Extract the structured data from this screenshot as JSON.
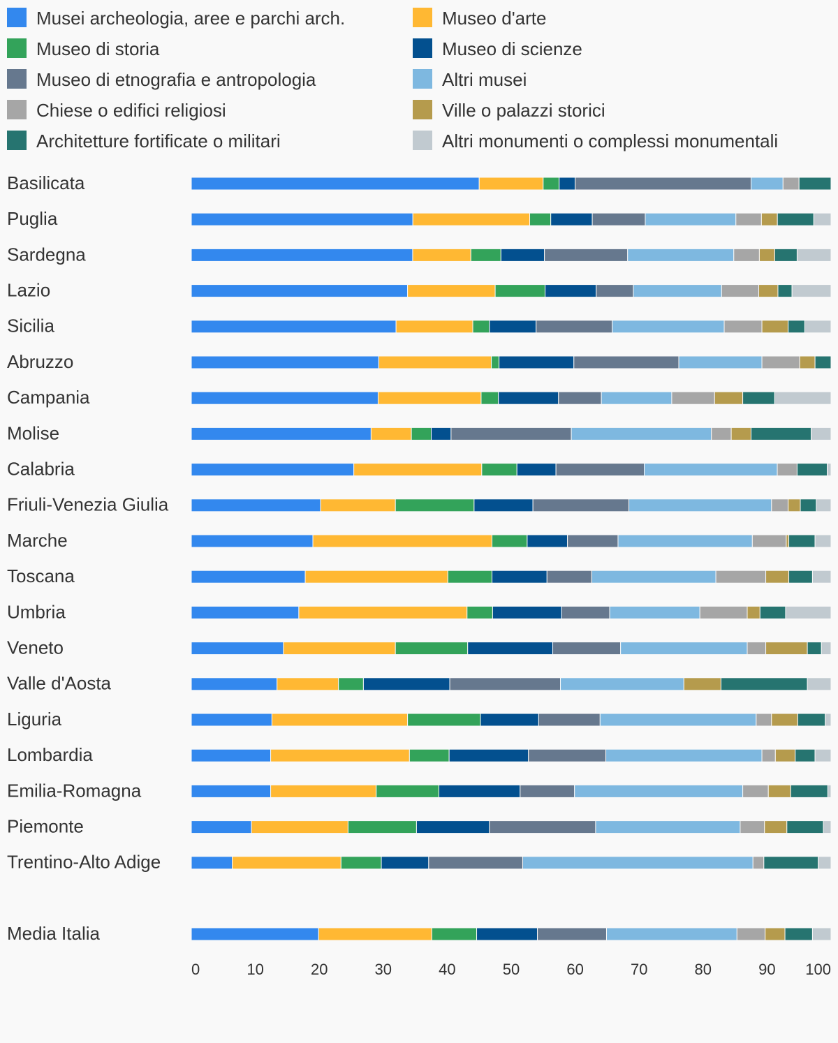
{
  "chart_data": {
    "type": "bar",
    "orientation": "horizontal",
    "stacked": true,
    "title": "",
    "xlabel": "",
    "ylabel": "",
    "xlim": [
      0,
      100
    ],
    "x_ticks": [
      0,
      10,
      20,
      30,
      40,
      50,
      60,
      70,
      80,
      90,
      100
    ],
    "grid": false,
    "legend_position": "top",
    "categories": [
      "Basilicata",
      "Puglia",
      "Sardegna",
      "Lazio",
      "Sicilia",
      "Abruzzo",
      "Campania",
      "Molise",
      "Calabria",
      "Friuli-Venezia Giulia",
      "Marche",
      "Toscana",
      "Umbria",
      "Veneto",
      "Valle d'Aosta",
      "Liguria",
      "Lombardia",
      "Emilia-Romagna",
      "Piemonte",
      "Trentino-Alto Adige",
      "Media Italia"
    ],
    "series": [
      {
        "name": "Musei archeologia, aree e parchi arch.",
        "color": "#3388ee",
        "values": [
          45.0,
          34.7,
          34.6,
          33.8,
          32.0,
          29.3,
          29.2,
          28.1,
          25.4,
          20.2,
          19.0,
          17.8,
          16.8,
          14.4,
          13.4,
          12.6,
          12.4,
          12.4,
          9.4,
          6.4,
          19.9
        ]
      },
      {
        "name": "Museo d'arte",
        "color": "#ffb833",
        "values": [
          10.0,
          18.3,
          9.1,
          13.7,
          12.0,
          17.6,
          16.1,
          6.3,
          20.0,
          11.7,
          28.0,
          22.3,
          26.3,
          17.5,
          9.6,
          21.2,
          21.7,
          16.5,
          15.1,
          17.0,
          17.7
        ]
      },
      {
        "name": "Museo di storia",
        "color": "#33a35a",
        "values": [
          2.5,
          3.3,
          4.7,
          7.8,
          2.6,
          1.2,
          2.7,
          3.1,
          5.5,
          12.3,
          5.5,
          6.9,
          4.0,
          11.3,
          3.9,
          11.4,
          6.2,
          9.8,
          10.7,
          6.3,
          7.0
        ]
      },
      {
        "name": "Museo di scienze",
        "color": "#03508f",
        "values": [
          2.5,
          6.5,
          6.8,
          8.0,
          7.3,
          11.7,
          9.4,
          3.1,
          6.1,
          9.2,
          6.3,
          8.6,
          10.8,
          13.3,
          13.5,
          9.1,
          12.4,
          12.7,
          11.4,
          7.4,
          9.5
        ]
      },
      {
        "name": "Museo di etnografia e antropologia",
        "color": "#66788e",
        "values": [
          27.5,
          8.3,
          13.0,
          5.8,
          11.9,
          16.4,
          6.7,
          18.8,
          13.8,
          15.0,
          7.9,
          7.0,
          7.5,
          10.6,
          17.3,
          9.6,
          12.1,
          8.5,
          16.6,
          14.7,
          10.8
        ]
      },
      {
        "name": "Altri musei",
        "color": "#7eb8e0",
        "values": [
          5.0,
          14.2,
          16.6,
          13.8,
          17.5,
          13.0,
          11.0,
          21.9,
          20.8,
          22.3,
          21.0,
          19.4,
          14.1,
          19.8,
          19.3,
          24.4,
          24.4,
          26.3,
          22.6,
          36.0,
          20.4
        ]
      },
      {
        "name": "Chiese o edifici religiosi",
        "color": "#a6a6a6",
        "values": [
          2.5,
          4.0,
          4.0,
          5.8,
          5.9,
          5.9,
          6.7,
          3.1,
          3.1,
          2.6,
          5.3,
          7.8,
          7.4,
          2.9,
          0.0,
          2.4,
          2.1,
          4.0,
          3.8,
          1.7,
          4.4
        ]
      },
      {
        "name": "Ville o palazzi storici",
        "color": "#b59b4d",
        "values": [
          0.0,
          2.5,
          2.4,
          3.0,
          4.1,
          2.4,
          4.4,
          3.1,
          0.0,
          1.9,
          0.4,
          3.6,
          2.0,
          6.5,
          5.8,
          4.1,
          3.1,
          3.5,
          3.5,
          0.0,
          3.1
        ]
      },
      {
        "name": "Architetture fortificate o militari",
        "color": "#267470",
        "values": [
          5.0,
          5.7,
          3.5,
          2.2,
          2.6,
          2.5,
          5.0,
          9.4,
          4.7,
          2.5,
          4.1,
          3.7,
          4.0,
          2.2,
          13.5,
          4.3,
          3.1,
          5.8,
          5.7,
          8.5,
          4.3
        ]
      },
      {
        "name": "Altri monumenti o complessi monumentali",
        "color": "#c1cad0",
        "values": [
          0.0,
          2.7,
          5.3,
          6.1,
          4.1,
          0.0,
          8.8,
          3.1,
          0.6,
          2.3,
          2.5,
          2.9,
          7.1,
          1.5,
          3.7,
          0.9,
          2.5,
          0.5,
          1.2,
          2.0,
          2.9
        ]
      }
    ]
  }
}
